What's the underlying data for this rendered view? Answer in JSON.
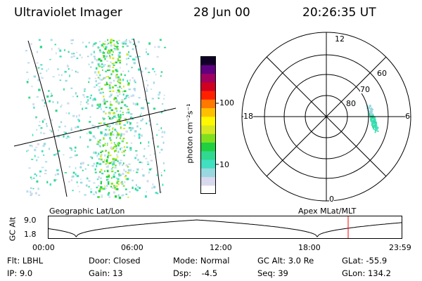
{
  "header": {
    "instrument": "Ultraviolet Imager",
    "date": "28 Jun 00",
    "time": "20:26:35 UT"
  },
  "colors": {
    "scale": [
      "#ffffff",
      "#d8d8ee",
      "#9ad8e0",
      "#40e0c0",
      "#30d890",
      "#20d040",
      "#80e020",
      "#d8e820",
      "#fff800",
      "#ffc000",
      "#ff7800",
      "#ff2000",
      "#d00020",
      "#a00060",
      "#600080",
      "#100028"
    ],
    "grid": "#000000",
    "marker": "#ff0000"
  },
  "colorbar": {
    "unit_label": "photon cm⁻²s⁻¹",
    "tick_100": "100",
    "tick_10": "10"
  },
  "polar_plot": {
    "mlt_12": "12",
    "mlt_18": "18",
    "mlt_6": "6",
    "mlt_0": "0",
    "lat_60": "60",
    "lat_70": "70",
    "lat_80": "80"
  },
  "labels": {
    "geographic": "Geographic Lat/Lon",
    "apex": "Apex MLat/MLT"
  },
  "altitude_plot": {
    "axis_label": "GC Alt",
    "y_high": "9.0",
    "y_low": "1.8",
    "x_ticks": [
      "00:00",
      "06:00",
      "12:00",
      "18:00",
      "23:59"
    ]
  },
  "info": {
    "flt": "Flt: LBHL",
    "ip": "IP:  9.0",
    "door": "Door: Closed",
    "gain": "Gain: 13",
    "mode": "Mode: Normal",
    "dsp": "Dsp:    -4.5",
    "gcalt": "GC Alt: 3.0 Re",
    "seq": "Seq: 39",
    "glat": "GLat: -55.9",
    "glon": "GLon: 134.2"
  }
}
